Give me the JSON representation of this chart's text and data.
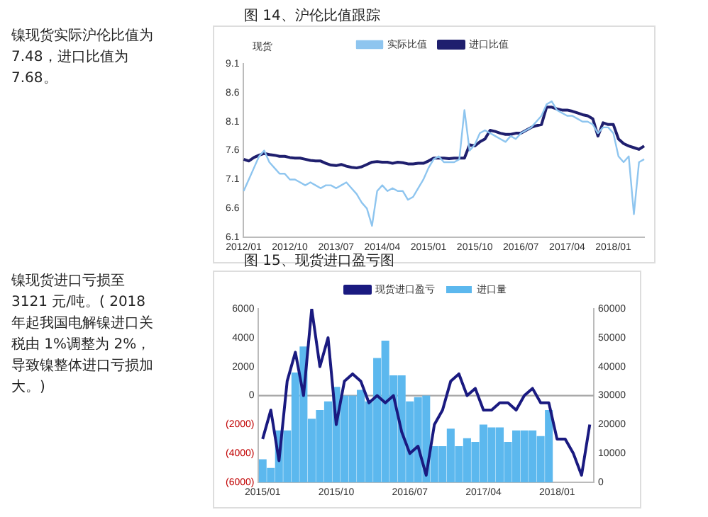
{
  "chart_data": [
    {
      "type": "line",
      "title": "图 14、沪伦比值跟踪",
      "ylabel": "现货",
      "annotations": [
        "镍现货实际沪伦比值为 7.48，进口比值为 7.68。"
      ],
      "categories": [
        "2012/01",
        null,
        null,
        null,
        null,
        null,
        null,
        null,
        null,
        "2012/10",
        null,
        null,
        null,
        null,
        null,
        null,
        null,
        null,
        "2013/07",
        null,
        null,
        null,
        null,
        null,
        null,
        null,
        null,
        "2014/04",
        null,
        null,
        null,
        null,
        null,
        null,
        null,
        null,
        "2015/01",
        null,
        null,
        null,
        null,
        null,
        null,
        null,
        null,
        "2015/10",
        null,
        null,
        null,
        null,
        null,
        null,
        null,
        null,
        "2016/07",
        null,
        null,
        null,
        null,
        null,
        null,
        null,
        null,
        "2017/04",
        null,
        null,
        null,
        null,
        null,
        null,
        null,
        null,
        "2018/01",
        null,
        null,
        null,
        null,
        null,
        null
      ],
      "series": [
        {
          "name": "实际比值",
          "color": "#8ec5ef",
          "values": [
            6.9,
            7.1,
            7.3,
            7.5,
            7.6,
            7.4,
            7.3,
            7.2,
            7.2,
            7.1,
            7.1,
            7.05,
            7.0,
            7.05,
            7.0,
            6.95,
            7.0,
            7.0,
            6.95,
            7.0,
            7.05,
            6.95,
            6.85,
            6.7,
            6.6,
            6.3,
            6.9,
            7.0,
            6.9,
            6.95,
            6.9,
            6.9,
            6.75,
            6.8,
            6.95,
            7.1,
            7.3,
            7.45,
            7.5,
            7.4,
            7.4,
            7.4,
            7.45,
            8.3,
            7.6,
            7.7,
            7.9,
            7.95,
            7.9,
            7.85,
            7.8,
            7.75,
            7.85,
            7.8,
            7.9,
            7.95,
            8.0,
            8.1,
            8.2,
            8.4,
            8.45,
            8.3,
            8.25,
            8.2,
            8.2,
            8.15,
            8.1,
            8.1,
            8.05,
            7.9,
            8.0,
            8.0,
            7.9,
            7.5,
            7.4,
            7.5,
            6.5,
            7.4,
            7.45
          ]
        },
        {
          "name": "进口比值",
          "color": "#1f1f6e",
          "values": [
            7.45,
            7.42,
            7.48,
            7.52,
            7.55,
            7.53,
            7.52,
            7.5,
            7.5,
            7.48,
            7.47,
            7.47,
            7.45,
            7.43,
            7.42,
            7.42,
            7.38,
            7.35,
            7.34,
            7.36,
            7.33,
            7.31,
            7.3,
            7.32,
            7.36,
            7.4,
            7.41,
            7.4,
            7.4,
            7.38,
            7.4,
            7.39,
            7.37,
            7.37,
            7.38,
            7.38,
            7.42,
            7.47,
            7.47,
            7.47,
            7.46,
            7.47,
            7.47,
            7.47,
            7.7,
            7.68,
            7.75,
            7.8,
            7.95,
            7.93,
            7.9,
            7.88,
            7.88,
            7.9,
            7.9,
            7.95,
            8.0,
            8.03,
            8.05,
            8.35,
            8.35,
            8.32,
            8.3,
            8.3,
            8.28,
            8.25,
            8.22,
            8.2,
            8.15,
            7.85,
            8.08,
            8.05,
            8.05,
            7.8,
            7.72,
            7.68,
            7.65,
            7.62,
            7.68
          ]
        }
      ],
      "ylim": [
        6.1,
        9.1
      ],
      "yticks": [
        6.1,
        6.6,
        7.1,
        7.6,
        8.1,
        8.6,
        9.1
      ],
      "grid": false,
      "legend": "top",
      "marker": "none"
    },
    {
      "type": "bar",
      "title": "图 15、现货进口盈亏图",
      "annotations": [
        "镍现货进口亏损至 3121 元/吨。( 2018 年起我国电解镍进口关税由 1%调整为 2%，导致镍整体进口亏损加大。)"
      ],
      "categories": [
        "2015/01",
        null,
        null,
        null,
        null,
        null,
        null,
        null,
        null,
        "2015/10",
        null,
        null,
        null,
        null,
        null,
        null,
        null,
        null,
        "2016/07",
        null,
        null,
        null,
        null,
        null,
        null,
        null,
        null,
        "2017/04",
        null,
        null,
        null,
        null,
        null,
        null,
        null,
        null,
        "2018/01",
        null,
        null,
        null,
        null
      ],
      "series": [
        {
          "name": "进口量",
          "type": "bar",
          "axis": "y2",
          "color": "#5cb8ee",
          "values": [
            8000,
            5000,
            18000,
            18000,
            38000,
            47000,
            22000,
            25000,
            28000,
            33000,
            30000,
            30000,
            32000,
            28000,
            43000,
            49000,
            37000,
            37000,
            28000,
            29500,
            30000,
            12500,
            12500,
            18600,
            12500,
            15300,
            14000,
            20000,
            19000,
            19000,
            14000,
            18000,
            18000,
            18000,
            16000,
            25000,
            null,
            null,
            null,
            null,
            null
          ]
        },
        {
          "name": "现货进口盈亏",
          "type": "line",
          "color": "#1a1a80",
          "values": [
            -3000,
            -1000,
            -4500,
            1000,
            3000,
            0,
            6000,
            2000,
            4000,
            -2000,
            1000,
            1500,
            1000,
            -500,
            0,
            -500,
            0,
            -2500,
            -4000,
            -3500,
            -5500,
            -2000,
            -1000,
            1000,
            1500,
            0,
            500,
            -1000,
            -1000,
            -500,
            -500,
            -1000,
            0,
            500,
            -500,
            -500,
            -3000,
            -3000,
            -4000,
            -5500,
            -2000
          ]
        }
      ],
      "ylim": [
        -6000,
        6000
      ],
      "yticks": [
        6000,
        4000,
        2000,
        0,
        {
          "value": -2000,
          "label": "(2000)"
        },
        {
          "value": -4000,
          "label": "(4000)"
        },
        {
          "value": -6000,
          "label": "(6000)"
        }
      ],
      "y2lim": [
        0,
        60000
      ],
      "y2ticks": [
        0,
        10000,
        20000,
        30000,
        40000,
        50000,
        60000
      ],
      "ref_lines": [
        {
          "axis": "y",
          "value": 0,
          "color": "#a6a6a6"
        }
      ],
      "grid": false,
      "legend": "top",
      "marker": "none"
    }
  ]
}
